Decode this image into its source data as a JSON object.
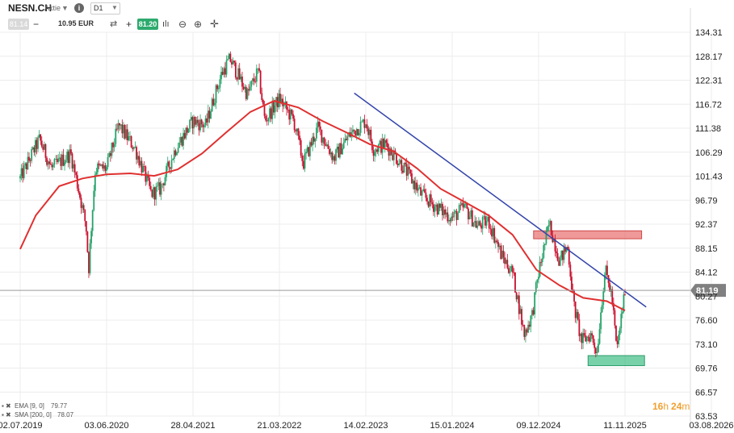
{
  "toolbar": {
    "symbol": "NESN.CH",
    "instrument_type": "Aktie",
    "info": "i",
    "timeframe": "D1",
    "bid": "81.14",
    "minus": "−",
    "quantity": "10.95 EUR",
    "plus": "+",
    "ask": "81.20"
  },
  "timer": {
    "hours": "16",
    "h": "h",
    "minutes": "24",
    "m": "m"
  },
  "colors": {
    "up_candle": "#26a269",
    "down_candle": "#c8102e",
    "sma_line": "#e03030",
    "trend_line": "#3344aa",
    "resistance_zone": "#e86d6d",
    "support_zone": "#4cc28d",
    "current_price_badge": "#808080",
    "timer": "#f0a030"
  },
  "chart_data": {
    "type": "candlestick",
    "symbol": "NESN.CH",
    "timeframe": "D1",
    "price_axis": {
      "ticks": [
        "134.31",
        "128.17",
        "122.31",
        "116.72",
        "111.38",
        "106.29",
        "101.43",
        "96.79",
        "92.37",
        "88.15",
        "84.12",
        "80.27",
        "76.60",
        "73.10",
        "69.76",
        "66.57",
        "63.53"
      ],
      "range": [
        63.53,
        134.31
      ]
    },
    "date_axis": {
      "ticks": [
        "02.07.2019",
        "03.06.2020",
        "28.04.2021",
        "21.03.2022",
        "14.02.2023",
        "15.01.2024",
        "09.12.2024",
        "11.11.2025",
        "03.08.2026"
      ]
    },
    "current_price": 81.19,
    "current_price_label": "81.19",
    "price_path": [
      [
        "2019-07-02",
        101.0
      ],
      [
        "2019-09-15",
        109.0
      ],
      [
        "2019-11-01",
        103.0
      ],
      [
        "2020-01-15",
        106.0
      ],
      [
        "2020-03-15",
        92.0
      ],
      [
        "2020-03-25",
        84.5
      ],
      [
        "2020-04-20",
        103.0
      ],
      [
        "2020-06-03",
        103.0
      ],
      [
        "2020-07-20",
        112.0
      ],
      [
        "2020-09-20",
        107.0
      ],
      [
        "2020-11-20",
        98.0
      ],
      [
        "2020-12-25",
        99.0
      ],
      [
        "2021-02-20",
        107.0
      ],
      [
        "2021-04-28",
        113.0
      ],
      [
        "2021-06-15",
        112.0
      ],
      [
        "2021-08-15",
        124.0
      ],
      [
        "2021-09-15",
        127.5
      ],
      [
        "2021-11-20",
        119.0
      ],
      [
        "2021-12-31",
        124.5
      ],
      [
        "2022-01-25",
        113.0
      ],
      [
        "2022-03-21",
        118.0
      ],
      [
        "2022-05-15",
        113.0
      ],
      [
        "2022-06-20",
        104.0
      ],
      [
        "2022-08-15",
        111.5
      ],
      [
        "2022-10-15",
        105.0
      ],
      [
        "2022-12-15",
        110.0
      ],
      [
        "2023-02-14",
        113.0
      ],
      [
        "2023-03-15",
        107.0
      ],
      [
        "2023-05-01",
        108.0
      ],
      [
        "2023-07-01",
        104.0
      ],
      [
        "2023-09-15",
        98.0
      ],
      [
        "2023-11-01",
        96.0
      ],
      [
        "2024-01-15",
        93.5
      ],
      [
        "2024-03-01",
        95.5
      ],
      [
        "2024-04-20",
        92.0
      ],
      [
        "2024-06-01",
        93.0
      ],
      [
        "2024-07-20",
        87.0
      ],
      [
        "2024-09-01",
        84.0
      ],
      [
        "2024-10-15",
        74.5
      ],
      [
        "2024-11-15",
        77.5
      ],
      [
        "2024-12-09",
        84.0
      ],
      [
        "2025-01-20",
        92.5
      ],
      [
        "2025-03-01",
        86.0
      ],
      [
        "2025-04-01",
        88.5
      ],
      [
        "2025-04-25",
        79.0
      ],
      [
        "2025-05-25",
        73.5
      ],
      [
        "2025-07-01",
        74.5
      ],
      [
        "2025-07-25",
        72.0
      ],
      [
        "2025-08-25",
        84.5
      ],
      [
        "2025-09-20",
        80.5
      ],
      [
        "2025-10-10",
        72.0
      ],
      [
        "2025-11-11",
        81.2
      ]
    ],
    "sma": {
      "name": "SMA [200, 0]",
      "value": "78.07",
      "points": [
        [
          "2019-07-02",
          88.0
        ],
        [
          "2019-09-01",
          94.0
        ],
        [
          "2019-12-01",
          99.5
        ],
        [
          "2020-03-01",
          101.0
        ],
        [
          "2020-06-03",
          101.8
        ],
        [
          "2020-09-01",
          102.0
        ],
        [
          "2020-12-01",
          101.5
        ],
        [
          "2021-03-01",
          102.8
        ],
        [
          "2021-06-01",
          106.0
        ],
        [
          "2021-09-01",
          110.5
        ],
        [
          "2021-12-01",
          115.0
        ],
        [
          "2022-03-01",
          117.5
        ],
        [
          "2022-06-01",
          116.0
        ],
        [
          "2022-09-01",
          113.0
        ],
        [
          "2022-12-01",
          110.5
        ],
        [
          "2023-03-01",
          108.0
        ],
        [
          "2023-06-01",
          106.5
        ],
        [
          "2023-09-01",
          103.0
        ],
        [
          "2023-12-01",
          99.0
        ],
        [
          "2024-03-01",
          96.5
        ],
        [
          "2024-06-01",
          94.0
        ],
        [
          "2024-09-01",
          90.5
        ],
        [
          "2024-12-01",
          84.5
        ],
        [
          "2025-03-01",
          82.0
        ],
        [
          "2025-06-01",
          80.0
        ],
        [
          "2025-09-01",
          79.5
        ],
        [
          "2025-11-11",
          78.07
        ]
      ]
    },
    "ema": {
      "name": "EMA [9, 0]",
      "value": "79.77"
    },
    "trend_line": {
      "start": [
        "2023-01-01",
        119.3
      ],
      "end": [
        "2026-01-15",
        78.6
      ]
    },
    "resistance_zone": {
      "x_start": "2024-11-20",
      "x_end": "2026-01-01",
      "y_low": 89.8,
      "y_high": 91.2
    },
    "support_zone": {
      "x_start": "2025-06-20",
      "x_end": "2026-01-10",
      "y_low": 70.1,
      "y_high": 71.5
    }
  }
}
